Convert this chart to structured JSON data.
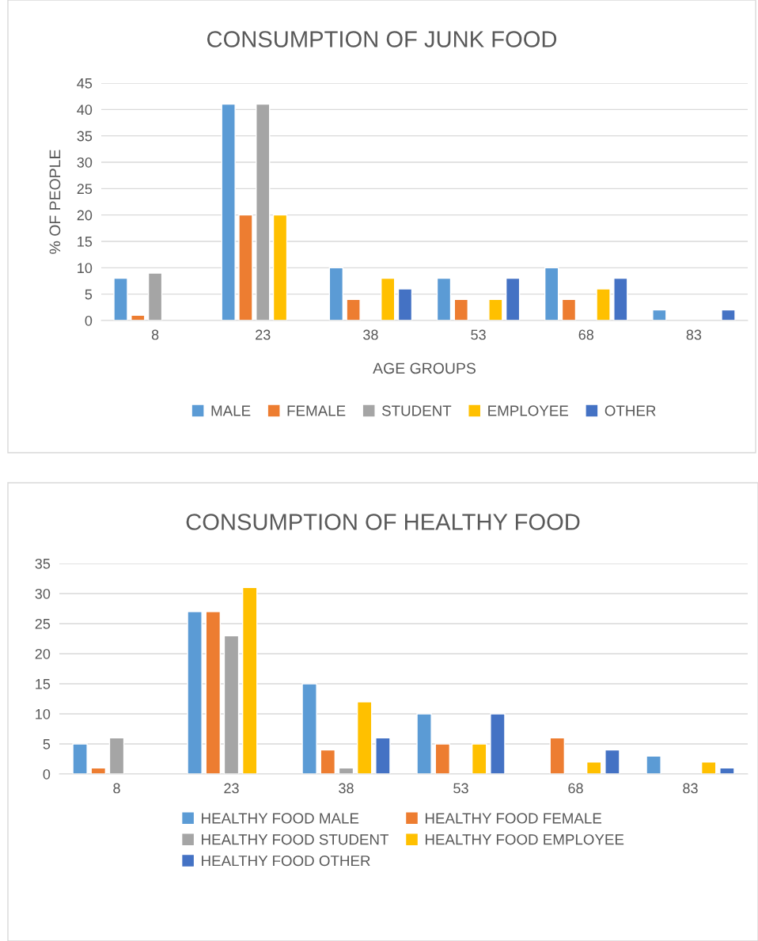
{
  "chart_data": [
    {
      "type": "bar",
      "title": "CONSUMPTION OF JUNK FOOD",
      "xlabel": "AGE GROUPS",
      "ylabel": "% OF PEOPLE",
      "categories": [
        "8",
        "23",
        "38",
        "53",
        "68",
        "83"
      ],
      "series": [
        {
          "name": "MALE",
          "color": "#5b9bd5",
          "values": [
            8,
            41,
            10,
            8,
            10,
            2
          ]
        },
        {
          "name": "FEMALE",
          "color": "#ed7d31",
          "values": [
            1,
            20,
            4,
            4,
            4,
            null
          ]
        },
        {
          "name": "STUDENT",
          "color": "#a5a5a5",
          "values": [
            9,
            41,
            null,
            null,
            null,
            null
          ]
        },
        {
          "name": "EMPLOYEE",
          "color": "#ffc000",
          "values": [
            null,
            20,
            8,
            4,
            6,
            null
          ]
        },
        {
          "name": "OTHER",
          "color": "#4472c4",
          "values": [
            null,
            null,
            6,
            8,
            8,
            2
          ]
        }
      ],
      "ylim": [
        0,
        45
      ],
      "yticks": [
        0,
        5,
        10,
        15,
        20,
        25,
        30,
        35,
        40,
        45
      ],
      "grid": "y",
      "legend": "bottom"
    },
    {
      "type": "bar",
      "title": "CONSUMPTION OF HEALTHY FOOD",
      "categories": [
        "8",
        "23",
        "38",
        "53",
        "68",
        "83"
      ],
      "series": [
        {
          "name": "HEALTHY FOOD MALE",
          "color": "#5b9bd5",
          "values": [
            5,
            27,
            15,
            10,
            null,
            3
          ]
        },
        {
          "name": "HEALTHY FOOD FEMALE",
          "color": "#ed7d31",
          "values": [
            1,
            27,
            4,
            5,
            6,
            null
          ]
        },
        {
          "name": "HEALTHY FOOD STUDENT",
          "color": "#a5a5a5",
          "values": [
            6,
            23,
            1,
            null,
            null,
            null
          ]
        },
        {
          "name": "HEALTHY FOOD EMPLOYEE",
          "color": "#ffc000",
          "values": [
            null,
            31,
            12,
            5,
            2,
            2
          ]
        },
        {
          "name": "HEALTHY FOOD OTHER",
          "color": "#4472c4",
          "values": [
            null,
            null,
            6,
            10,
            4,
            1
          ]
        }
      ],
      "ylim": [
        0,
        35
      ],
      "yticks": [
        0,
        5,
        10,
        15,
        20,
        25,
        30,
        35
      ],
      "grid": "y",
      "legend": "bottom"
    }
  ]
}
